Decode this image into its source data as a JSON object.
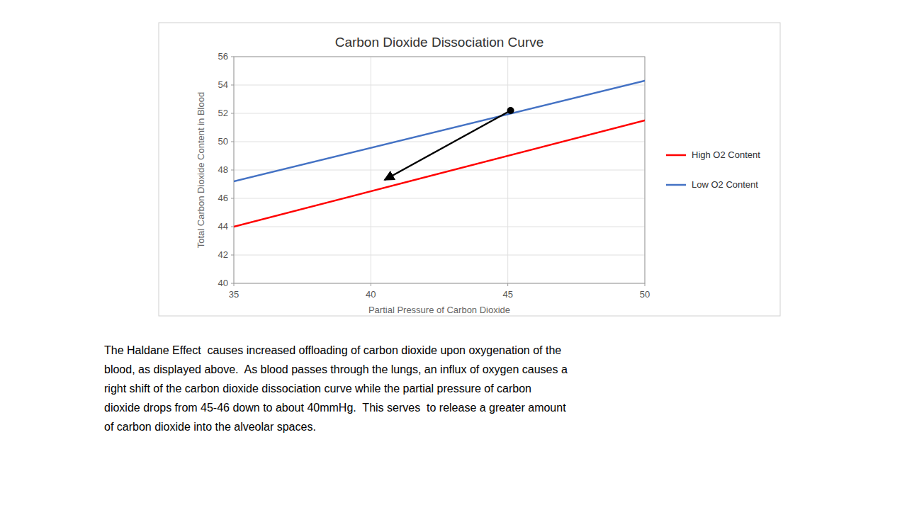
{
  "chart_data": {
    "type": "line",
    "title": "Carbon Dioxide Dissociation Curve",
    "x_label": "Partial Pressure of Carbon Dioxide",
    "y_label": "Total Carbon Dioxide Content in Blood",
    "x": [
      35,
      50
    ],
    "series": [
      {
        "name": "High O2 Content",
        "color": "#FF0000",
        "values": [
          44.0,
          51.5
        ]
      },
      {
        "name": "Low O2 Content",
        "color": "#4472C4",
        "values": [
          47.2,
          54.3
        ]
      }
    ],
    "arrow": {
      "x": [
        45.1,
        40.5
      ],
      "y": [
        52.2,
        47.3
      ],
      "color": "#000000"
    },
    "dot": {
      "x": 45.1,
      "y": 52.2,
      "color": "#000000"
    },
    "xlim": [
      35,
      50
    ],
    "ylim": [
      40,
      56
    ],
    "xticks": [
      35,
      40,
      45,
      50
    ],
    "yticks": [
      40,
      42,
      44,
      46,
      48,
      50,
      52,
      54,
      56
    ],
    "grid": true,
    "legend": "right",
    "annotation": "The Haldane Effect  causes increased offloading of carbon dioxide upon oxygenation of the\nblood, as displayed above.  As blood passes through the lungs, an influx of oxygen causes a\nright shift of the carbon dioxide dissociation curve while the partial pressure of carbon\ndioxide drops from 45-46 down to about 40mmHg.  This serves  to release a greater amount\nof carbon dioxide into the alveolar spaces."
  }
}
